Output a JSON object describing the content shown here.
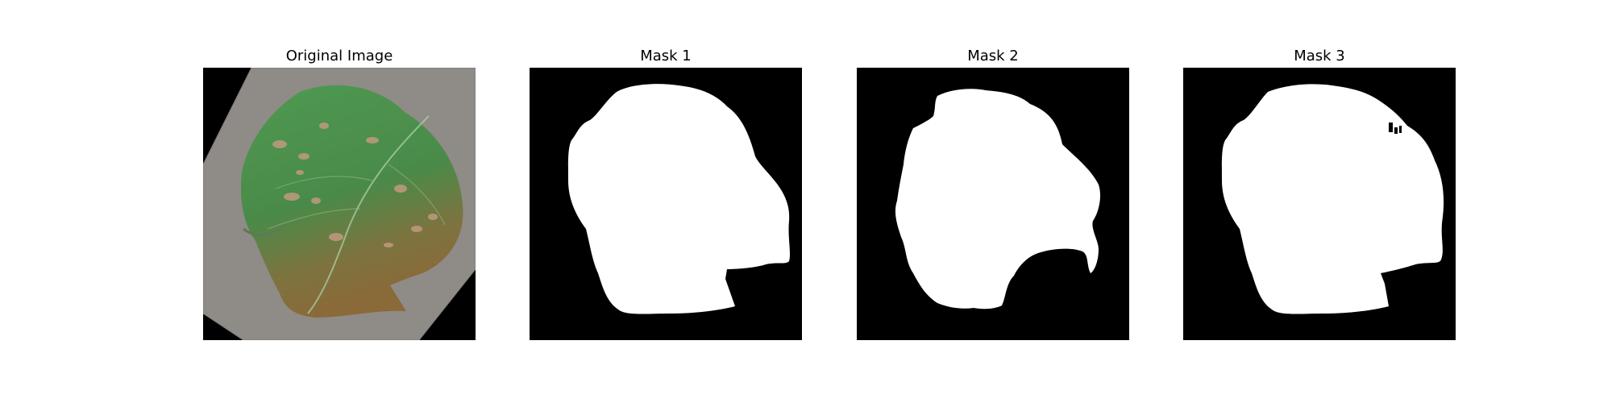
{
  "figure": {
    "panels": [
      {
        "title": "Original Image"
      },
      {
        "title": "Mask 1"
      },
      {
        "title": "Mask 2"
      },
      {
        "title": "Mask 3"
      }
    ]
  },
  "colors": {
    "background": "#ffffff",
    "mask_foreground": "#ffffff",
    "mask_background": "#000000",
    "leaf_green": "#4f8a4a",
    "leaf_brown": "#8a6a3a",
    "surface_gray": "#8f8b87"
  }
}
